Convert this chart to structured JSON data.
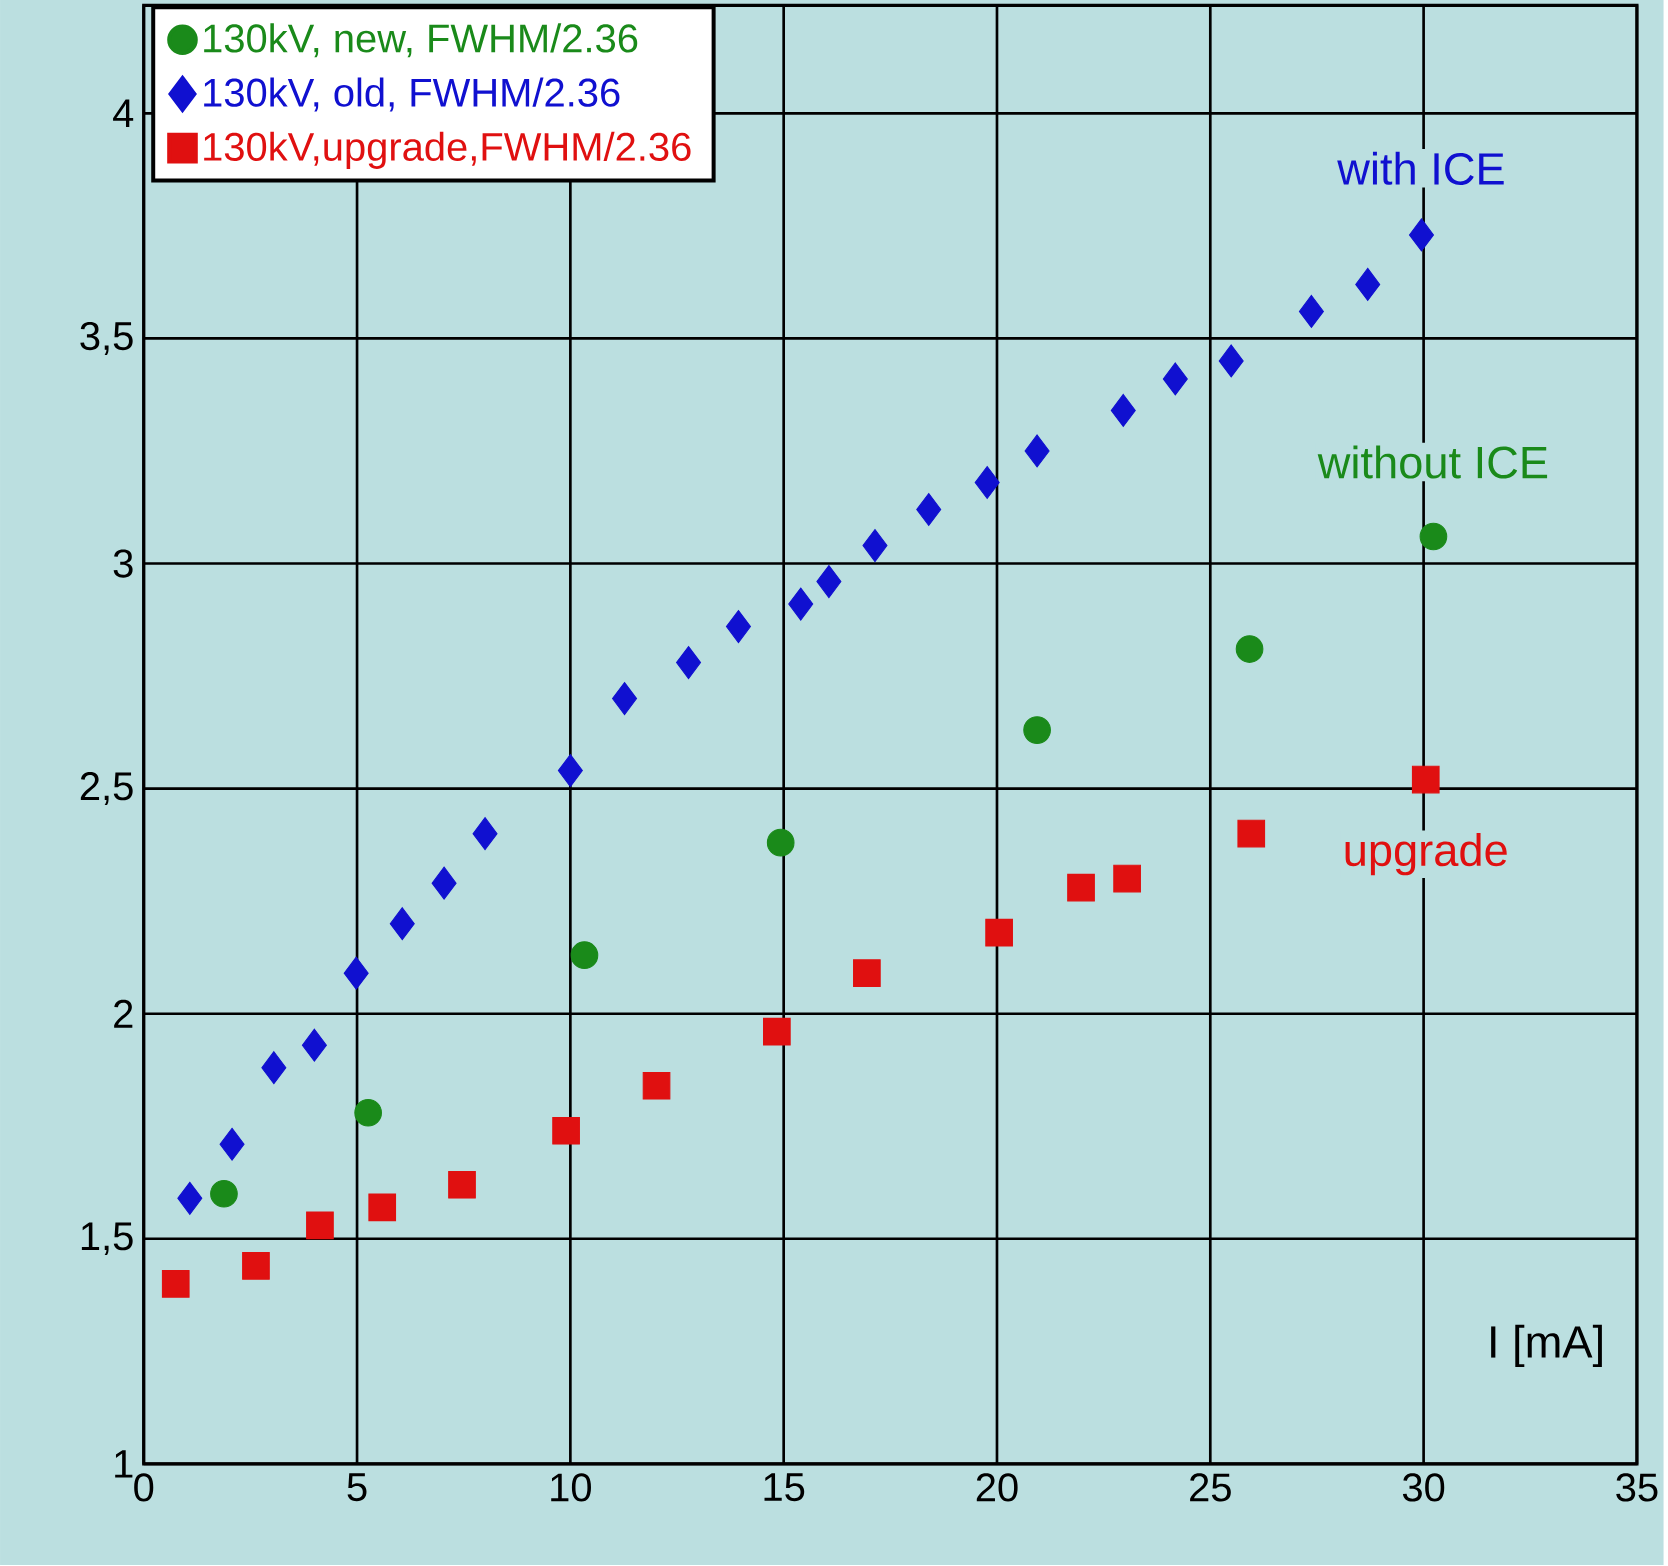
{
  "chart_data": {
    "type": "scatter",
    "xlabel": "I [mA]",
    "xlim": [
      0,
      35
    ],
    "ylim": [
      1,
      4.24
    ],
    "xticks": [
      0,
      5,
      10,
      15,
      20,
      25,
      30,
      35
    ],
    "yticks": [
      1,
      {
        "value": 1.5,
        "label": "1,5"
      },
      2,
      {
        "value": 2.5,
        "label": "2,5"
      },
      3,
      {
        "value": 3.5,
        "label": "3,5"
      },
      4
    ],
    "grid": true,
    "legend": "top left",
    "series": [
      {
        "name": "130kV, new, FWHM/2.36",
        "color": "#1a8a1a",
        "marker": "circle",
        "x": [
          1.88,
          5.26,
          10.33,
          14.93,
          20.94,
          25.92,
          30.23
        ],
        "values": [
          1.6,
          1.78,
          2.13,
          2.38,
          2.63,
          2.81,
          3.06
        ]
      },
      {
        "name": "130kV, old, FWHM/2.36",
        "color": "#1010d0",
        "marker": "diamond",
        "x": [
          1.08,
          2.07,
          3.05,
          4.0,
          4.98,
          6.06,
          7.04,
          8.0,
          10.0,
          11.27,
          12.77,
          13.94,
          15.4,
          16.06,
          17.14,
          18.4,
          19.77,
          20.94,
          22.96,
          24.18,
          25.49,
          27.37,
          28.69,
          29.95
        ],
        "values": [
          1.59,
          1.71,
          1.88,
          1.93,
          2.09,
          2.2,
          2.29,
          2.4,
          2.54,
          2.7,
          2.78,
          2.86,
          2.91,
          2.96,
          3.04,
          3.12,
          3.18,
          3.25,
          3.34,
          3.41,
          3.45,
          3.56,
          3.62,
          3.73
        ]
      },
      {
        "name": "130kV,upgrade,FWHM/2.36",
        "color": "#e01010",
        "marker": "square",
        "x": [
          0.75,
          2.63,
          4.13,
          5.59,
          7.46,
          9.9,
          12.02,
          14.84,
          16.95,
          20.05,
          21.97,
          23.05,
          25.96,
          30.05
        ],
        "values": [
          1.4,
          1.44,
          1.53,
          1.57,
          1.62,
          1.74,
          1.84,
          1.96,
          2.09,
          2.18,
          2.28,
          2.3,
          2.4,
          2.52
        ]
      }
    ],
    "annotations": [
      "without ICE",
      "with ICE",
      "upgrade"
    ]
  }
}
